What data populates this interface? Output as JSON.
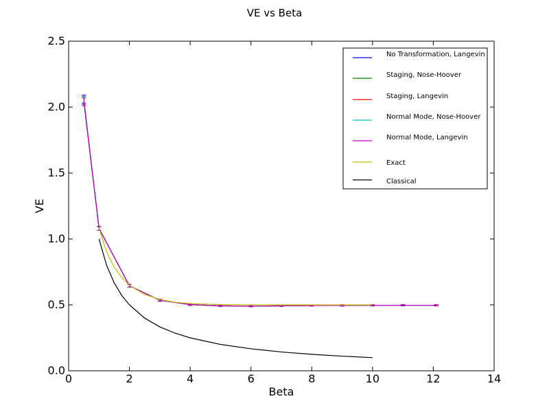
{
  "chart_data": {
    "type": "line",
    "title": "VE vs Beta",
    "xlabel": "Beta",
    "ylabel": "VE",
    "xlim": [
      0,
      14
    ],
    "ylim": [
      0,
      2.5
    ],
    "xticks": [
      0,
      2,
      4,
      6,
      8,
      10,
      12,
      14
    ],
    "yticks": [
      0.0,
      0.5,
      1.0,
      1.5,
      2.0,
      2.5
    ],
    "xtick_labels": [
      "0",
      "2",
      "4",
      "6",
      "8",
      "10",
      "12",
      "14"
    ],
    "ytick_labels": [
      "0.0",
      "0.5",
      "1.0",
      "1.5",
      "2.0",
      "2.5"
    ],
    "grid": false,
    "legend_position": "top-right",
    "sim_x": [
      0.5,
      1,
      2,
      3,
      4,
      5,
      6,
      7,
      8,
      9,
      10,
      11,
      12.1
    ],
    "series": [
      {
        "name": "No Transformation, Langevin",
        "color": "#0000ff",
        "values": [
          2.06,
          1.08,
          0.645,
          0.535,
          0.502,
          0.493,
          0.49,
          0.493,
          0.495,
          0.496,
          0.497,
          0.497,
          0.497
        ],
        "errors": [
          0.03,
          0.015,
          0.01,
          0.008,
          0.006,
          0.005,
          0.005,
          0.005,
          0.005,
          0.005,
          0.005,
          0.005,
          0.005
        ]
      },
      {
        "name": "Staging, Nose-Hoover",
        "color": "#008000",
        "values": [
          2.05,
          1.08,
          0.645,
          0.535,
          0.502,
          0.493,
          0.49,
          0.493,
          0.495,
          0.496,
          0.497,
          0.497,
          0.497
        ],
        "errors": [
          0.03,
          0.015,
          0.01,
          0.008,
          0.006,
          0.005,
          0.005,
          0.005,
          0.005,
          0.005,
          0.005,
          0.005,
          0.005
        ]
      },
      {
        "name": "Staging, Langevin",
        "color": "#ff0000",
        "values": [
          2.05,
          1.08,
          0.645,
          0.535,
          0.502,
          0.493,
          0.49,
          0.493,
          0.495,
          0.496,
          0.497,
          0.497,
          0.497
        ],
        "errors": [
          0.03,
          0.015,
          0.01,
          0.008,
          0.006,
          0.005,
          0.005,
          0.005,
          0.005,
          0.005,
          0.005,
          0.005,
          0.005
        ]
      },
      {
        "name": "Normal Mode, Nose-Hoover",
        "color": "#00bfbf",
        "values": [
          2.05,
          1.08,
          0.645,
          0.535,
          0.502,
          0.493,
          0.49,
          0.493,
          0.495,
          0.496,
          0.497,
          0.497,
          0.497
        ],
        "errors": [
          0.03,
          0.015,
          0.01,
          0.008,
          0.006,
          0.005,
          0.005,
          0.005,
          0.005,
          0.005,
          0.005,
          0.005,
          0.005
        ]
      },
      {
        "name": "Normal Mode, Langevin",
        "color": "#bf00bf",
        "values": [
          2.04,
          1.08,
          0.645,
          0.535,
          0.502,
          0.493,
          0.49,
          0.493,
          0.495,
          0.496,
          0.497,
          0.497,
          0.497
        ],
        "errors": [
          0.03,
          0.015,
          0.01,
          0.008,
          0.006,
          0.005,
          0.005,
          0.005,
          0.005,
          0.005,
          0.005,
          0.005,
          0.005
        ]
      },
      {
        "name": "Exact",
        "color": "#bfbf00",
        "x": [
          1,
          1.25,
          1.5,
          1.75,
          2,
          2.5,
          3,
          3.5,
          4,
          5,
          6,
          7,
          8,
          9,
          10
        ],
        "values": [
          1.082,
          0.902,
          0.786,
          0.706,
          0.648,
          0.579,
          0.541,
          0.52,
          0.51,
          0.502,
          0.5,
          0.5,
          0.5,
          0.5,
          0.5
        ]
      },
      {
        "name": "Classical",
        "color": "#000000",
        "x": [
          1,
          1.25,
          1.5,
          1.75,
          2,
          2.5,
          3,
          3.5,
          4,
          5,
          6,
          7,
          8,
          9,
          10
        ],
        "values": [
          1.0,
          0.8,
          0.667,
          0.571,
          0.5,
          0.4,
          0.333,
          0.286,
          0.25,
          0.2,
          0.167,
          0.143,
          0.125,
          0.111,
          0.1
        ]
      }
    ]
  }
}
